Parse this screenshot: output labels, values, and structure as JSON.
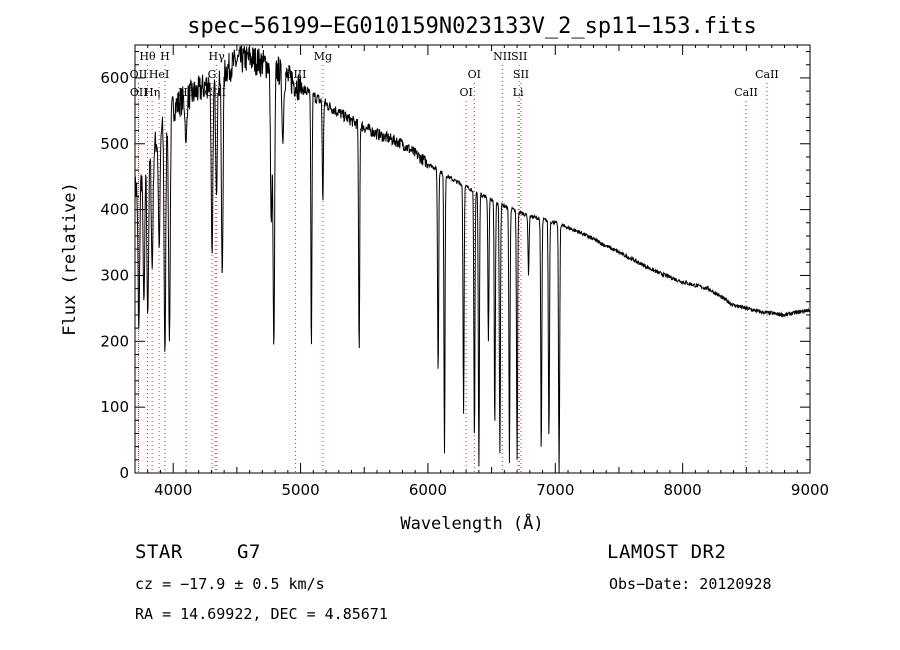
{
  "chart_data": {
    "type": "line",
    "title": "spec−56199−EG010159N023133V_2_sp11−153.fits",
    "xlabel": "Wavelength (Å)",
    "ylabel": "Flux (relative)",
    "xlim": [
      3700,
      9000
    ],
    "ylim": [
      0,
      650
    ],
    "x_ticks": [
      4000,
      5000,
      6000,
      7000,
      8000,
      9000
    ],
    "y_ticks": [
      0,
      100,
      200,
      300,
      400,
      500,
      600
    ],
    "line_color": "#000000",
    "marker_color": "#c0392b",
    "grid": false,
    "continuum": [
      [
        3700,
        430
      ],
      [
        3800,
        470
      ],
      [
        3900,
        520
      ],
      [
        4000,
        555
      ],
      [
        4100,
        570
      ],
      [
        4200,
        580
      ],
      [
        4400,
        610
      ],
      [
        4500,
        625
      ],
      [
        4600,
        630
      ],
      [
        4800,
        615
      ],
      [
        5000,
        585
      ],
      [
        5200,
        560
      ],
      [
        5400,
        535
      ],
      [
        5600,
        515
      ],
      [
        5800,
        500
      ],
      [
        6000,
        470
      ],
      [
        6200,
        445
      ],
      [
        6400,
        425
      ],
      [
        6600,
        405
      ],
      [
        6800,
        390
      ],
      [
        7000,
        380
      ],
      [
        7200,
        365
      ],
      [
        7400,
        345
      ],
      [
        7600,
        325
      ],
      [
        7800,
        305
      ],
      [
        8000,
        290
      ],
      [
        8200,
        280
      ],
      [
        8400,
        255
      ],
      [
        8600,
        245
      ],
      [
        8800,
        240
      ],
      [
        9000,
        248
      ]
    ],
    "absorption_features": [
      [
        3730,
        220
      ],
      [
        3770,
        260
      ],
      [
        3800,
        240
      ],
      [
        3835,
        310
      ],
      [
        3890,
        340
      ],
      [
        3935,
        180
      ],
      [
        3970,
        200
      ],
      [
        4100,
        500
      ],
      [
        4305,
        330
      ],
      [
        4340,
        420
      ],
      [
        4385,
        300
      ],
      [
        4770,
        380
      ],
      [
        4790,
        190
      ],
      [
        4861,
        500
      ],
      [
        5085,
        185
      ],
      [
        5175,
        410
      ],
      [
        5460,
        180
      ],
      [
        6080,
        150
      ],
      [
        6130,
        30
      ],
      [
        6280,
        90
      ],
      [
        6365,
        50
      ],
      [
        6400,
        10
      ],
      [
        6475,
        200
      ],
      [
        6525,
        70
      ],
      [
        6565,
        30
      ],
      [
        6640,
        15
      ],
      [
        6700,
        20
      ],
      [
        6790,
        300
      ],
      [
        6890,
        30
      ],
      [
        6950,
        50
      ],
      [
        7030,
        0
      ]
    ],
    "lines": [
      {
        "name": "Hθ",
        "x": 3798,
        "row": 0
      },
      {
        "name": "H",
        "x": 3935,
        "row": 0
      },
      {
        "name": "Hγ",
        "x": 4341,
        "row": 0
      },
      {
        "name": "Mg",
        "x": 5175,
        "row": 0
      },
      {
        "name": "NII",
        "x": 6584,
        "row": 0
      },
      {
        "name": "SII",
        "x": 6717,
        "row": 0
      },
      {
        "name": "OII",
        "x": 3727,
        "row": 1
      },
      {
        "name": "HeI",
        "x": 3889,
        "row": 1
      },
      {
        "name": "G",
        "x": 4305,
        "row": 1
      },
      {
        "name": "OIII",
        "x": 4960,
        "row": 1
      },
      {
        "name": "OI",
        "x": 6364,
        "row": 1
      },
      {
        "name": "SII",
        "x": 6731,
        "row": 1
      },
      {
        "name": "CaII",
        "x": 8662,
        "row": 1
      },
      {
        "name": "OII",
        "x": 3729,
        "row": 2
      },
      {
        "name": "Hη",
        "x": 3835,
        "row": 2
      },
      {
        "name": "Hδ",
        "x": 4102,
        "row": 2
      },
      {
        "name": "CIII",
        "x": 4330,
        "row": 2
      },
      {
        "name": "OI",
        "x": 6300,
        "row": 2
      },
      {
        "name": "Li",
        "x": 6708,
        "row": 2
      },
      {
        "name": "CaII",
        "x": 8498,
        "row": 2
      }
    ]
  },
  "info": {
    "object_class": "STAR",
    "subclass": "G7",
    "survey": "LAMOST DR2",
    "redshift": "cz = −17.9 ± 0.5 km/s",
    "obs_date": "Obs−Date: 20120928",
    "coords": "RA =  14.69922, DEC =   4.85671"
  }
}
